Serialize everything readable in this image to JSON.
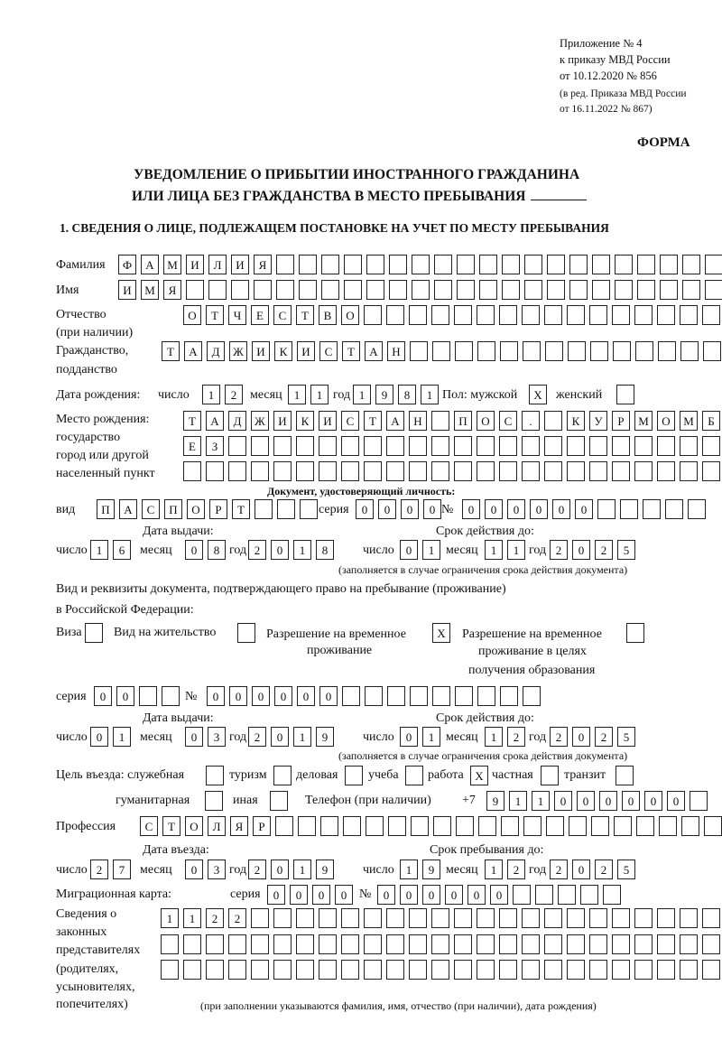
{
  "header": {
    "appendix": "Приложение № 4",
    "order": "к приказу МВД России",
    "order_date": "от 10.12.2020 № 856",
    "revision1": "(в ред. Приказа МВД России",
    "revision2": "от 16.11.2022 № 867)",
    "form_label": "ФОРМА",
    "title1": "УВЕДОМЛЕНИЕ О ПРИБЫТИИ ИНОСТРАННОГО ГРАЖДАНИНА",
    "title2": "ИЛИ ЛИЦА БЕЗ ГРАЖДАНСТВА В МЕСТО ПРЕБЫВАНИЯ",
    "section1": "1. СВЕДЕНИЯ О ЛИЦЕ, ПОДЛЕЖАЩЕМ ПОСТАНОВКЕ НА УЧЕТ ПО МЕСТУ ПРЕБЫВАНИЯ"
  },
  "labels": {
    "surname": "Фамилия",
    "name": "Имя",
    "patronymic": "Отчество",
    "patronymic2": "(при наличии)",
    "citizenship": "Гражданство,",
    "citizenship2": "подданство",
    "dob": "Дата рождения:",
    "day": "число",
    "month": "месяц",
    "year": "год",
    "sex_male": "Пол: мужской",
    "sex_female": "женский",
    "birthplace1": "Место рождения:",
    "birthplace2": "государство",
    "birthplace3": "город или другой",
    "birthplace4": "населенный пункт",
    "id_doc": "Документ, удостоверяющий личность:",
    "kind": "вид",
    "series": "серия",
    "number": "№",
    "issue_date": "Дата выдачи:",
    "valid_until": "Срок действия до:",
    "validity_note": "(заполняется в случае ограничения срока действия документа)",
    "right_doc1": "Вид и реквизиты документа, подтверждающего право на пребывание (проживание)",
    "right_doc2": "в Российской Федерации:",
    "visa": "Виза",
    "residence": "Вид на жительство",
    "temp1": "Разрешение на временное",
    "temp2": "проживание",
    "temp_edu1": "Разрешение на временное",
    "temp_edu2": "проживание в целях",
    "temp_edu3": "получения образования",
    "purpose": "Цель въезда: служебная",
    "tourism": "туризм",
    "business": "деловая",
    "study": "учеба",
    "work": "работа",
    "private": "частная",
    "transit": "транзит",
    "humanitarian": "гуманитарная",
    "other": "иная",
    "phone": "Телефон (при наличии)",
    "phone_prefix": "+7",
    "profession": "Профессия",
    "entry_date": "Дата въезда:",
    "stay_until": "Срок пребывания до:",
    "migration_card": "Миграционная карта:",
    "reps1": "Сведения о",
    "reps2": "законных",
    "reps3": "представителях",
    "reps4": "(родителях,",
    "reps5": "усыновителях,",
    "reps6": "попечителях)",
    "reps_note": "(при заполнении указываются фамилия, имя, отчество (при наличии), дата рождения)"
  },
  "values": {
    "surname": "ФАМИЛИЯ",
    "name": "ИМЯ",
    "patronymic": "ОТЧЕСТВО",
    "citizenship": "ТАДЖИКИСТАН",
    "dob_day": "12",
    "dob_month": "11",
    "dob_year": "1981",
    "sex_male": "X",
    "sex_female": "",
    "birthplace1": "ТАДЖИКИСТАН ПОС. КУРМОМБ",
    "birthplace2": "ЕЗ",
    "birthplace3": "",
    "id_kind": "ПАСПОРТ",
    "id_series": "0000",
    "id_number": "000000",
    "id_issue_day": "16",
    "id_issue_month": "08",
    "id_issue_year": "2018",
    "id_valid_day": "01",
    "id_valid_month": "11",
    "id_valid_year": "2025",
    "visa": "",
    "residence": "",
    "temp_residence": "X",
    "temp_residence_edu": "",
    "rd_series": "00",
    "rd_number": "000000",
    "rd_issue_day": "01",
    "rd_issue_month": "03",
    "rd_issue_year": "2019",
    "rd_valid_day": "01",
    "rd_valid_month": "12",
    "rd_valid_year": "2025",
    "purpose_official": "",
    "purpose_tourism": "",
    "purpose_business": "",
    "purpose_study": "",
    "purpose_work": "X",
    "purpose_private": "",
    "purpose_transit": "",
    "purpose_humanitarian": "",
    "purpose_other": "",
    "phone": "911000000",
    "profession": "СТОЛЯР",
    "entry_day": "27",
    "entry_month": "03",
    "entry_year": "2019",
    "stay_day": "19",
    "stay_month": "12",
    "stay_year": "2025",
    "mc_series": "0000",
    "mc_number": "000000",
    "reps1": "1122",
    "reps2": "",
    "reps3": ""
  }
}
